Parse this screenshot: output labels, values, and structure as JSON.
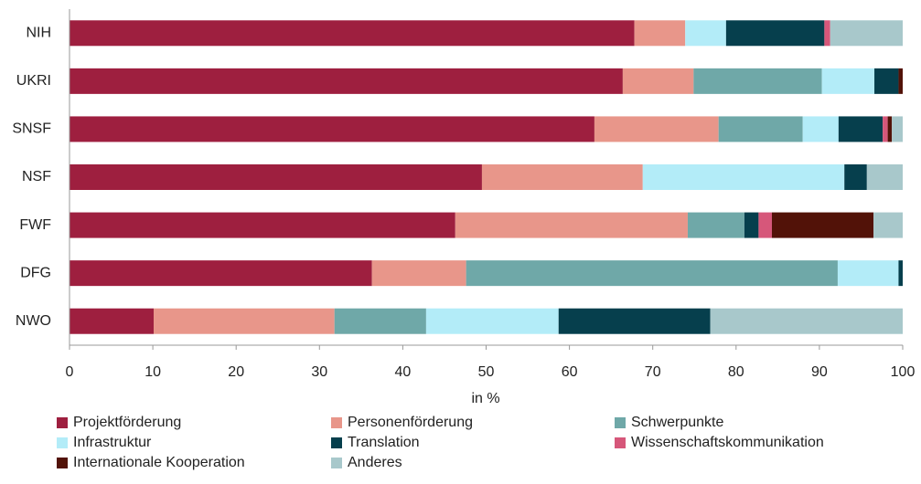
{
  "chart_data": {
    "type": "stacked_bar_horizontal",
    "categories": [
      "NIH",
      "UKRI",
      "SNSF",
      "NSF",
      "FWF",
      "DFG",
      "NWO"
    ],
    "series": [
      {
        "name": "Projektförderung",
        "color": "#9e1f3f",
        "values": [
          67.8,
          66.4,
          63.0,
          49.5,
          46.3,
          36.3,
          10.1
        ]
      },
      {
        "name": "Personenförderung",
        "color": "#e8968a",
        "values": [
          6.1,
          8.5,
          14.9,
          19.3,
          27.9,
          11.3,
          21.7
        ]
      },
      {
        "name": "Schwerpunkte",
        "color": "#6fa8a8",
        "values": [
          0,
          15.4,
          10.1,
          0,
          6.8,
          44.6,
          11.0
        ]
      },
      {
        "name": "Infrastruktur",
        "color": "#b3ecf8",
        "values": [
          4.9,
          6.3,
          4.3,
          24.2,
          0,
          7.3,
          15.9
        ]
      },
      {
        "name": "Translation",
        "color": "#063f4d",
        "values": [
          11.8,
          2.9,
          5.3,
          2.7,
          1.7,
          0.5,
          18.2
        ]
      },
      {
        "name": "Wissenschaftskommunikation",
        "color": "#d6577a",
        "values": [
          0.7,
          0,
          0.6,
          0,
          1.6,
          0,
          0
        ]
      },
      {
        "name": "Internationale Kooperation",
        "color": "#521208",
        "values": [
          0,
          0.5,
          0.5,
          0,
          12.2,
          0,
          0
        ]
      },
      {
        "name": "Anderes",
        "color": "#a8c8cb",
        "values": [
          8.7,
          0,
          1.3,
          4.3,
          3.5,
          0,
          23.1
        ]
      }
    ],
    "xlabel": "in %",
    "xlim": [
      0,
      100
    ],
    "xticks": [
      0,
      10,
      20,
      30,
      40,
      50,
      60,
      70,
      80,
      90,
      100
    ],
    "legend": "bottom"
  }
}
